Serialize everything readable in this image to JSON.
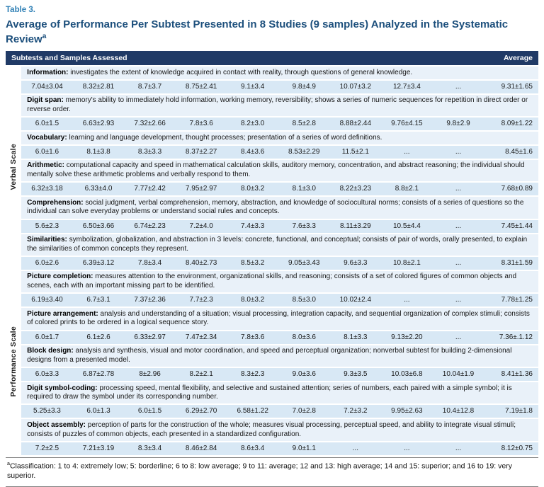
{
  "colors": {
    "header_bg": "#203A66",
    "desc_row_bg": "#E9F1F9",
    "data_row_bg": "#D8E8F5",
    "accent_line": "#3A78B5",
    "label_color": "#2E7FB5",
    "title_color": "#1C4F7C"
  },
  "heading": {
    "table_label": "Table 3.",
    "title": "Average of Performance Per Subtest Presented in 8 Studies (9 samples) Analyzed in the Systematic Review",
    "title_sup": "a"
  },
  "table": {
    "header_left": "Subtests and Samples Assessed",
    "header_right": "Average",
    "groups": [
      {
        "scale": "Verbal Scale",
        "subtests": [
          {
            "name": "Information:",
            "description": "investigates the extent of knowledge acquired in contact with reality, through questions of general knowledge.",
            "values": [
              "7.04±3.04",
              "8.32±2.81",
              "8.7±3.7",
              "8.75±2.41",
              "9.1±3.4",
              "9.8±4.9",
              "10.07±3.2",
              "12.7±3.4",
              "..."
            ],
            "average": "9.31±1.65"
          },
          {
            "name": "Digit span:",
            "description": "memory's ability to immediately hold information, working memory, reversibility; shows a series of numeric sequences for repetition in direct order or reverse order.",
            "values": [
              "6.0±1.5",
              "6.63±2.93",
              "7.32±2.66",
              "7.8±3.6",
              "8.2±3.0",
              "8.5±2.8",
              "8.88±2.44",
              "9.76±4.15",
              "9.8±2.9"
            ],
            "average": "8.09±1.22"
          },
          {
            "name": "Vocabulary:",
            "description": "learning and language development, thought processes; presentation of a series of word definitions.",
            "values": [
              "6.0±1.6",
              "8.1±3.8",
              "8.3±3.3",
              "8.37±2.27",
              "8.4±3.6",
              "8.53±2.29",
              "11.5±2.1",
              "...",
              "..."
            ],
            "average": "8.45±1.6"
          },
          {
            "name": "Arithmetic:",
            "description": "computational capacity and speed in mathematical calculation skills, auditory memory, concentration, and abstract reasoning; the individual should mentally solve these arithmetic problems and verbally respond to them.",
            "values": [
              "6.32±3.18",
              "6.33±4.0",
              "7.77±2.42",
              "7.95±2.97",
              "8.0±3.2",
              "8.1±3.0",
              "8.22±3.23",
              "8.8±2.1",
              "..."
            ],
            "average": "7.68±0.89"
          },
          {
            "name": "Comprehension:",
            "description": "social judgment, verbal comprehension, memory, abstraction, and knowledge of sociocultural norms; consists of a series of questions so the individual can solve everyday problems or understand social rules and concepts.",
            "values": [
              "5.6±2.3",
              "6.50±3.66",
              "6.74±2.23",
              "7.2±4.0",
              "7.4±3.3",
              "7.6±3.3",
              "8.11±3.29",
              "10.5±4.4",
              "..."
            ],
            "average": "7.45±1.44"
          },
          {
            "name": "Similarities:",
            "description": "symbolization, globalization, and abstraction in 3 levels: concrete, functional, and conceptual; consists of pair of words, orally presented, to explain the similarities of common concepts they represent.",
            "values": [
              "6.0±2.6",
              "6.39±3.12",
              "7.8±3.4",
              "8.40±2.73",
              "8.5±3.2",
              "9.05±3.43",
              "9.6±3.3",
              "10.8±2.1",
              "..."
            ],
            "average": "8.31±1.59"
          }
        ]
      },
      {
        "scale": "Performance Scale",
        "subtests": [
          {
            "name": "Picture completion:",
            "description": "measures attention to the environment, organizational skills, and reasoning; consists of a set of colored figures of common objects and scenes, each with an important missing part to be identified.",
            "values": [
              "6.19±3.40",
              "6.7±3.1",
              "7.37±2.36",
              "7.7±2.3",
              "8.0±3.2",
              "8.5±3.0",
              "10.02±2.4",
              "...",
              "..."
            ],
            "average": "7.78±1.25"
          },
          {
            "name": "Picture arrangement:",
            "description": "analysis and understanding of a situation; visual processing, integration capacity, and sequential organization of complex stimuli; consists of colored prints to be ordered in a logical sequence story.",
            "values": [
              "6.0±1.7",
              "6.1±2.6",
              "6.33±2.97",
              "7.47±2.34",
              "7.8±3.6",
              "8.0±3.6",
              "8.1±3.3",
              "9.13±2.20",
              "..."
            ],
            "average": "7.36±.1.12"
          },
          {
            "name": "Block design:",
            "description": "analysis and synthesis, visual and motor coordination, and speed and perceptual organization; nonverbal subtest for building 2-dimensional designs from a presented model.",
            "values": [
              "6.0±3.3",
              "6.87±2.78",
              "8±2.96",
              "8.2±2.1",
              "8.3±2.3",
              "9.0±3.6",
              "9.3±3.5",
              "10.03±6.8",
              "10.04±1.9"
            ],
            "average": "8.41±1.36"
          },
          {
            "name": "Digit symbol-coding:",
            "description": "processing speed, mental flexibility, and selective and sustained attention; series of numbers, each paired with a simple symbol; it is required to draw the symbol under its corresponding number.",
            "values": [
              "5.25±3.3",
              "6.0±1.3",
              "6.0±1.5",
              "6.29±2.70",
              "6.58±1.22",
              "7.0±2.8",
              "7.2±3.2",
              "9.95±2.63",
              "10.4±12.8"
            ],
            "average": "7.19±1.8"
          },
          {
            "name": "Object assembly:",
            "description": "perception of parts for the construction of the whole; measures visual processing, perceptual speed, and ability to integrate visual stimuli; consists of puzzles of common objects, each presented in a standardized configuration.",
            "values": [
              "7.2±2.5",
              "7.21±3.19",
              "8.3±3.4",
              "8.46±2.84",
              "8.6±3.4",
              "9.0±1.1",
              "...",
              "...",
              "..."
            ],
            "average": "8.12±0.75"
          }
        ]
      }
    ]
  },
  "footnote": {
    "sup": "a",
    "text": "Classification: 1 to 4: extremely low; 5: borderline; 6 to 8: low average; 9 to 11: average; 12 and 13: high average; 14 and 15: superior; and 16 to 19: very superior."
  }
}
